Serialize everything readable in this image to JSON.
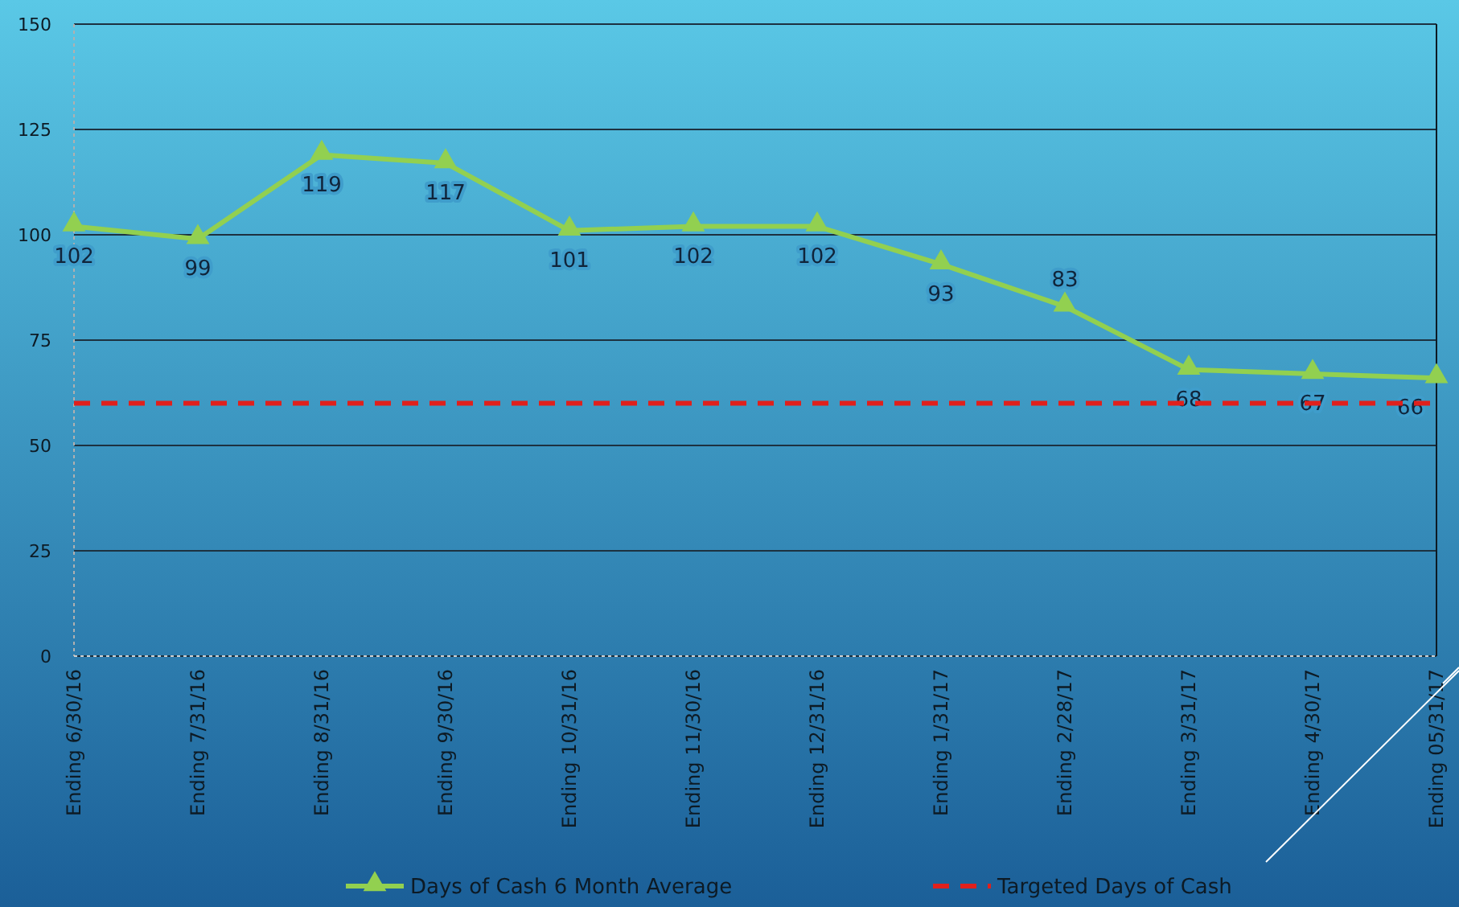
{
  "chart_data": {
    "type": "line",
    "categories": [
      "Ending 6/30/16",
      "Ending 7/31/16",
      "Ending 8/31/16",
      "Ending 9/30/16",
      "Ending 10/31/16",
      "Ending 11/30/16",
      "Ending 12/31/16",
      "Ending 1/31/17",
      "Ending 2/28/17",
      "Ending 3/31/17",
      "Ending 4/30/17",
      "Ending 05/31/17"
    ],
    "series": [
      {
        "name": "Days of Cash 6 Month Average",
        "color": "#92d050",
        "values": [
          102,
          99,
          119,
          117,
          101,
          102,
          102,
          93,
          83,
          68,
          67,
          66
        ],
        "marker": "triangle",
        "line_style": "solid",
        "data_labels": true
      },
      {
        "name": "Targeted Days of Cash",
        "color": "#e0201c",
        "values": [
          60,
          60,
          60,
          60,
          60,
          60,
          60,
          60,
          60,
          60,
          60,
          60
        ],
        "marker": "none",
        "line_style": "dashed"
      }
    ],
    "ylim": [
      0,
      150
    ],
    "yticks": [
      0,
      25,
      50,
      75,
      100,
      125,
      150
    ],
    "grid": "y",
    "legend": "bottom"
  }
}
